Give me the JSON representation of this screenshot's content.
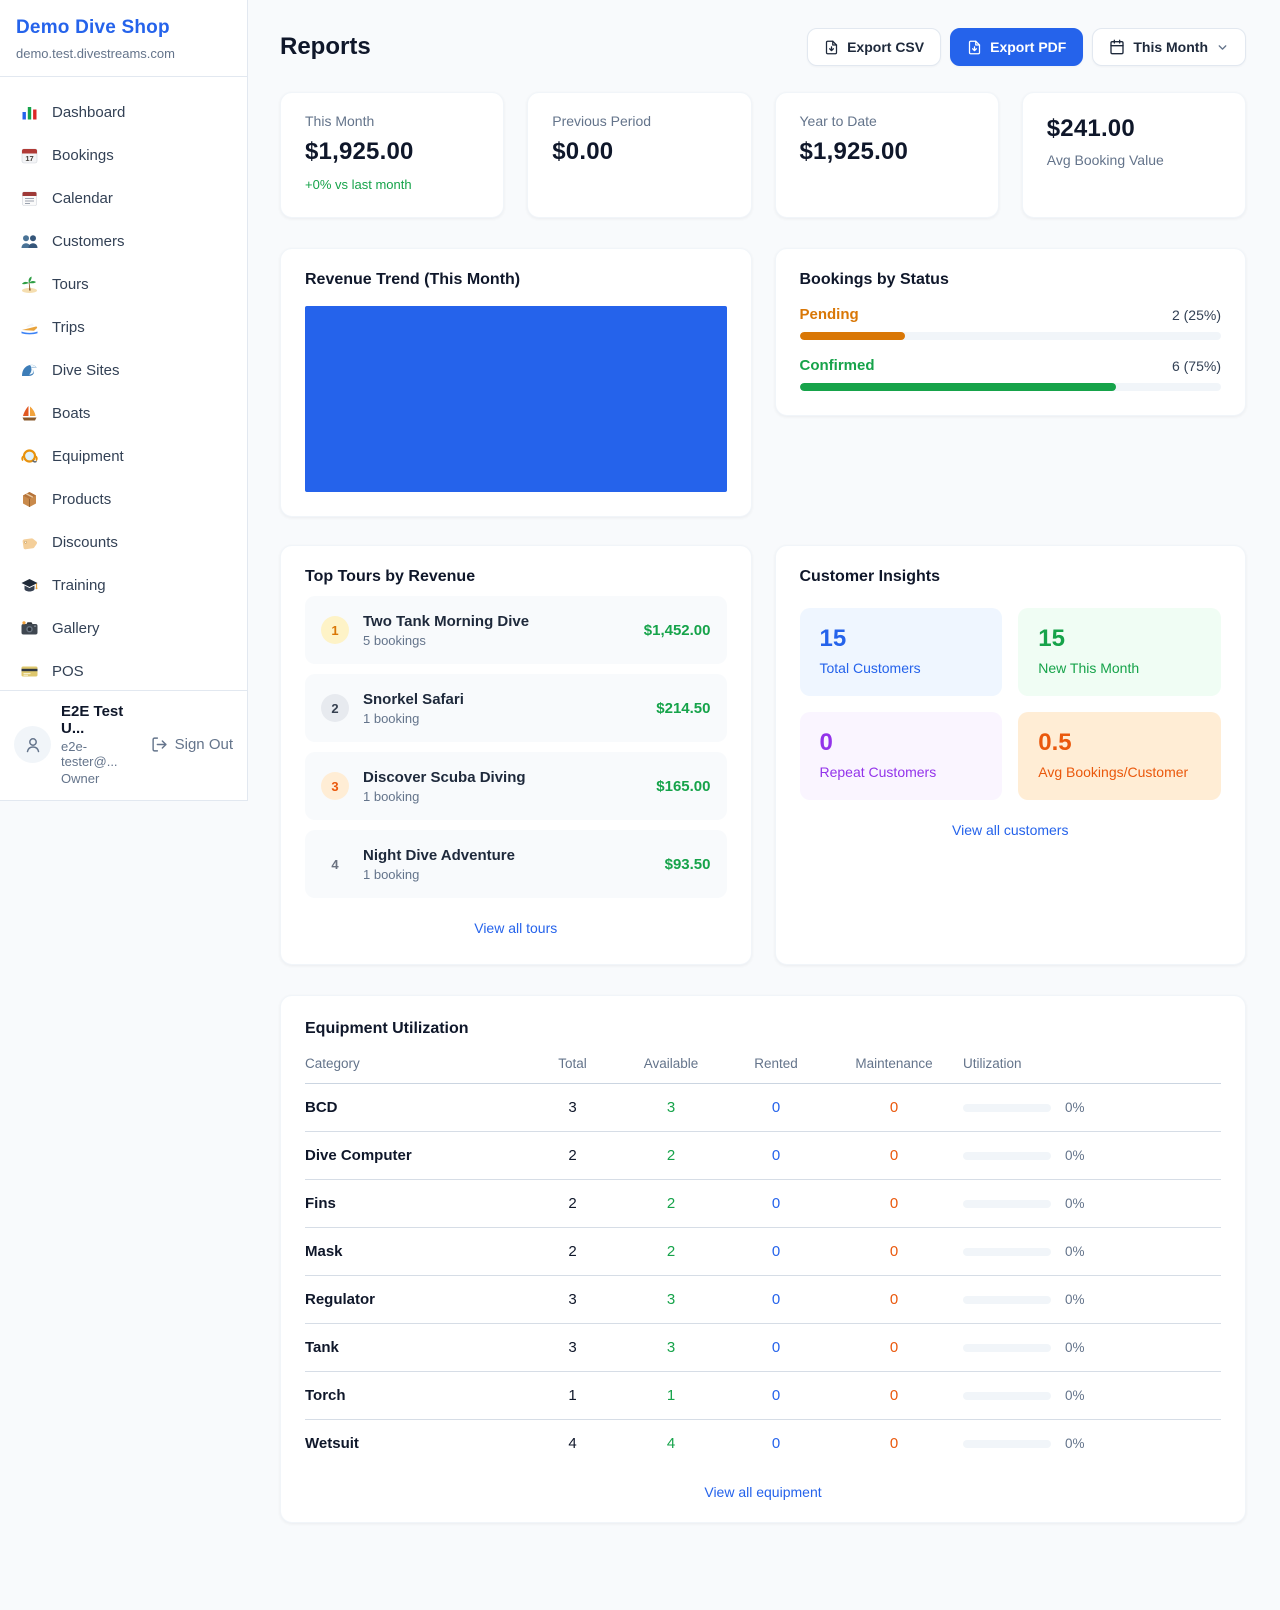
{
  "sidebar": {
    "shop_name": "Demo Dive Shop",
    "shop_domain": "demo.test.divestreams.com",
    "items": [
      {
        "icon": "dashboard-icon",
        "label": "Dashboard"
      },
      {
        "icon": "bookings-icon",
        "label": "Bookings"
      },
      {
        "icon": "calendar-icon",
        "label": "Calendar"
      },
      {
        "icon": "customers-icon",
        "label": "Customers"
      },
      {
        "icon": "tours-icon",
        "label": "Tours"
      },
      {
        "icon": "trips-icon",
        "label": "Trips"
      },
      {
        "icon": "dive-sites-icon",
        "label": "Dive Sites"
      },
      {
        "icon": "boats-icon",
        "label": "Boats"
      },
      {
        "icon": "equipment-icon",
        "label": "Equipment"
      },
      {
        "icon": "products-icon",
        "label": "Products"
      },
      {
        "icon": "discounts-icon",
        "label": "Discounts"
      },
      {
        "icon": "training-icon",
        "label": "Training"
      },
      {
        "icon": "gallery-icon",
        "label": "Gallery"
      },
      {
        "icon": "pos-icon",
        "label": "POS"
      }
    ],
    "user": {
      "name": "E2E Test U...",
      "email": "e2e-tester@...",
      "role": "Owner",
      "sign_out_label": "Sign Out"
    }
  },
  "header": {
    "title": "Reports",
    "export_csv_label": "Export CSV",
    "export_pdf_label": "Export PDF",
    "period_label": "This Month"
  },
  "stats": [
    {
      "label": "This Month",
      "value": "$1,925.00",
      "delta": "+0% vs last month"
    },
    {
      "label": "Previous Period",
      "value": "$0.00"
    },
    {
      "label": "Year to Date",
      "value": "$1,925.00"
    },
    {
      "label": "Avg Booking Value",
      "value": "$241.00"
    }
  ],
  "revenue_trend": {
    "title": "Revenue Trend (This Month)",
    "bar_color": "#2563eb"
  },
  "bookings_by_status": {
    "title": "Bookings by Status",
    "rows": [
      {
        "label": "Pending",
        "count_text": "2 (25%)",
        "percent": 25,
        "color": "#d97706"
      },
      {
        "label": "Confirmed",
        "count_text": "6 (75%)",
        "percent": 75,
        "color": "#16a34a"
      }
    ]
  },
  "top_tours": {
    "title": "Top Tours by Revenue",
    "rows": [
      {
        "rank": "1",
        "name": "Two Tank Morning Dive",
        "bookings": "5 bookings",
        "revenue": "$1,452.00"
      },
      {
        "rank": "2",
        "name": "Snorkel Safari",
        "bookings": "1 booking",
        "revenue": "$214.50"
      },
      {
        "rank": "3",
        "name": "Discover Scuba Diving",
        "bookings": "1 booking",
        "revenue": "$165.00"
      },
      {
        "rank": "4",
        "name": "Night Dive Adventure",
        "bookings": "1 booking",
        "revenue": "$93.50"
      }
    ],
    "view_all_label": "View all tours"
  },
  "customer_insights": {
    "title": "Customer Insights",
    "tiles": [
      {
        "value": "15",
        "label": "Total Customers",
        "theme": "blue",
        "color": "#2563eb"
      },
      {
        "value": "15",
        "label": "New This Month",
        "theme": "green",
        "color": "#16a34a"
      },
      {
        "value": "0",
        "label": "Repeat Customers",
        "theme": "purple",
        "color": "#9333ea"
      },
      {
        "value": "0.5",
        "label": "Avg Bookings/Customer",
        "theme": "orange",
        "color": "#ea580c"
      }
    ],
    "view_all_label": "View all customers"
  },
  "equipment": {
    "title": "Equipment Utilization",
    "columns": [
      "Category",
      "Total",
      "Available",
      "Rented",
      "Maintenance",
      "Utilization"
    ],
    "rows": [
      {
        "category": "BCD",
        "total": "3",
        "available": "3",
        "rented": "0",
        "maintenance": "0",
        "utilization": "0%",
        "utilization_percent": 0
      },
      {
        "category": "Dive Computer",
        "total": "2",
        "available": "2",
        "rented": "0",
        "maintenance": "0",
        "utilization": "0%",
        "utilization_percent": 0
      },
      {
        "category": "Fins",
        "total": "2",
        "available": "2",
        "rented": "0",
        "maintenance": "0",
        "utilization": "0%",
        "utilization_percent": 0
      },
      {
        "category": "Mask",
        "total": "2",
        "available": "2",
        "rented": "0",
        "maintenance": "0",
        "utilization": "0%",
        "utilization_percent": 0
      },
      {
        "category": "Regulator",
        "total": "3",
        "available": "3",
        "rented": "0",
        "maintenance": "0",
        "utilization": "0%",
        "utilization_percent": 0
      },
      {
        "category": "Tank",
        "total": "3",
        "available": "3",
        "rented": "0",
        "maintenance": "0",
        "utilization": "0%",
        "utilization_percent": 0
      },
      {
        "category": "Torch",
        "total": "1",
        "available": "1",
        "rented": "0",
        "maintenance": "0",
        "utilization": "0%",
        "utilization_percent": 0
      },
      {
        "category": "Wetsuit",
        "total": "4",
        "available": "4",
        "rented": "0",
        "maintenance": "0",
        "utilization": "0%",
        "utilization_percent": 0
      }
    ],
    "view_all_label": "View all equipment"
  }
}
